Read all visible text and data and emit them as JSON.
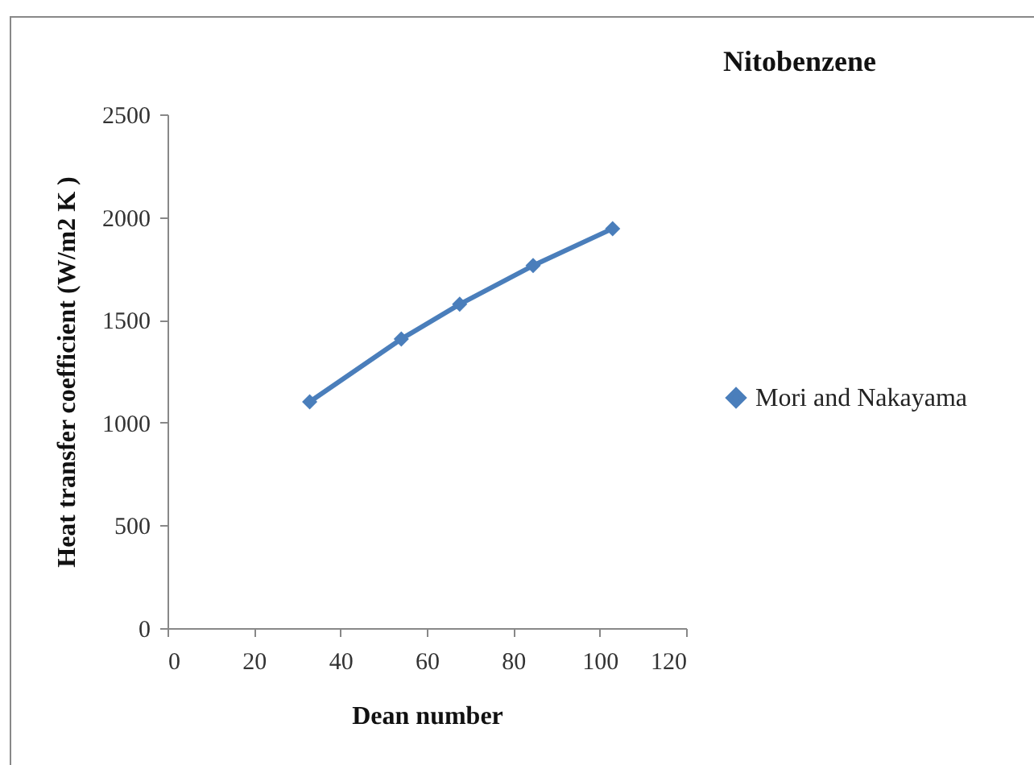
{
  "chart_data": {
    "type": "line",
    "title": "Nitobenzene",
    "xlabel": "Dean number",
    "ylabel": "Heat transfer coefficient (W/m2 K )",
    "x": [
      32.9,
      54.1,
      67.6,
      84.6,
      103.0
    ],
    "series": [
      {
        "name": "Mori and Nakayama",
        "color": "#4a7ebb",
        "values": [
          1101,
          1407,
          1576,
          1764,
          1944
        ]
      }
    ],
    "xlim": [
      0,
      120
    ],
    "xticks": [
      0,
      20,
      40,
      60,
      80,
      100,
      120
    ],
    "ylim": [
      0,
      2500
    ],
    "yticks": [
      0,
      500,
      1000,
      1500,
      2000,
      2500
    ],
    "grid": false,
    "legend": "right",
    "marker": "diamond",
    "line_style": "solid"
  }
}
